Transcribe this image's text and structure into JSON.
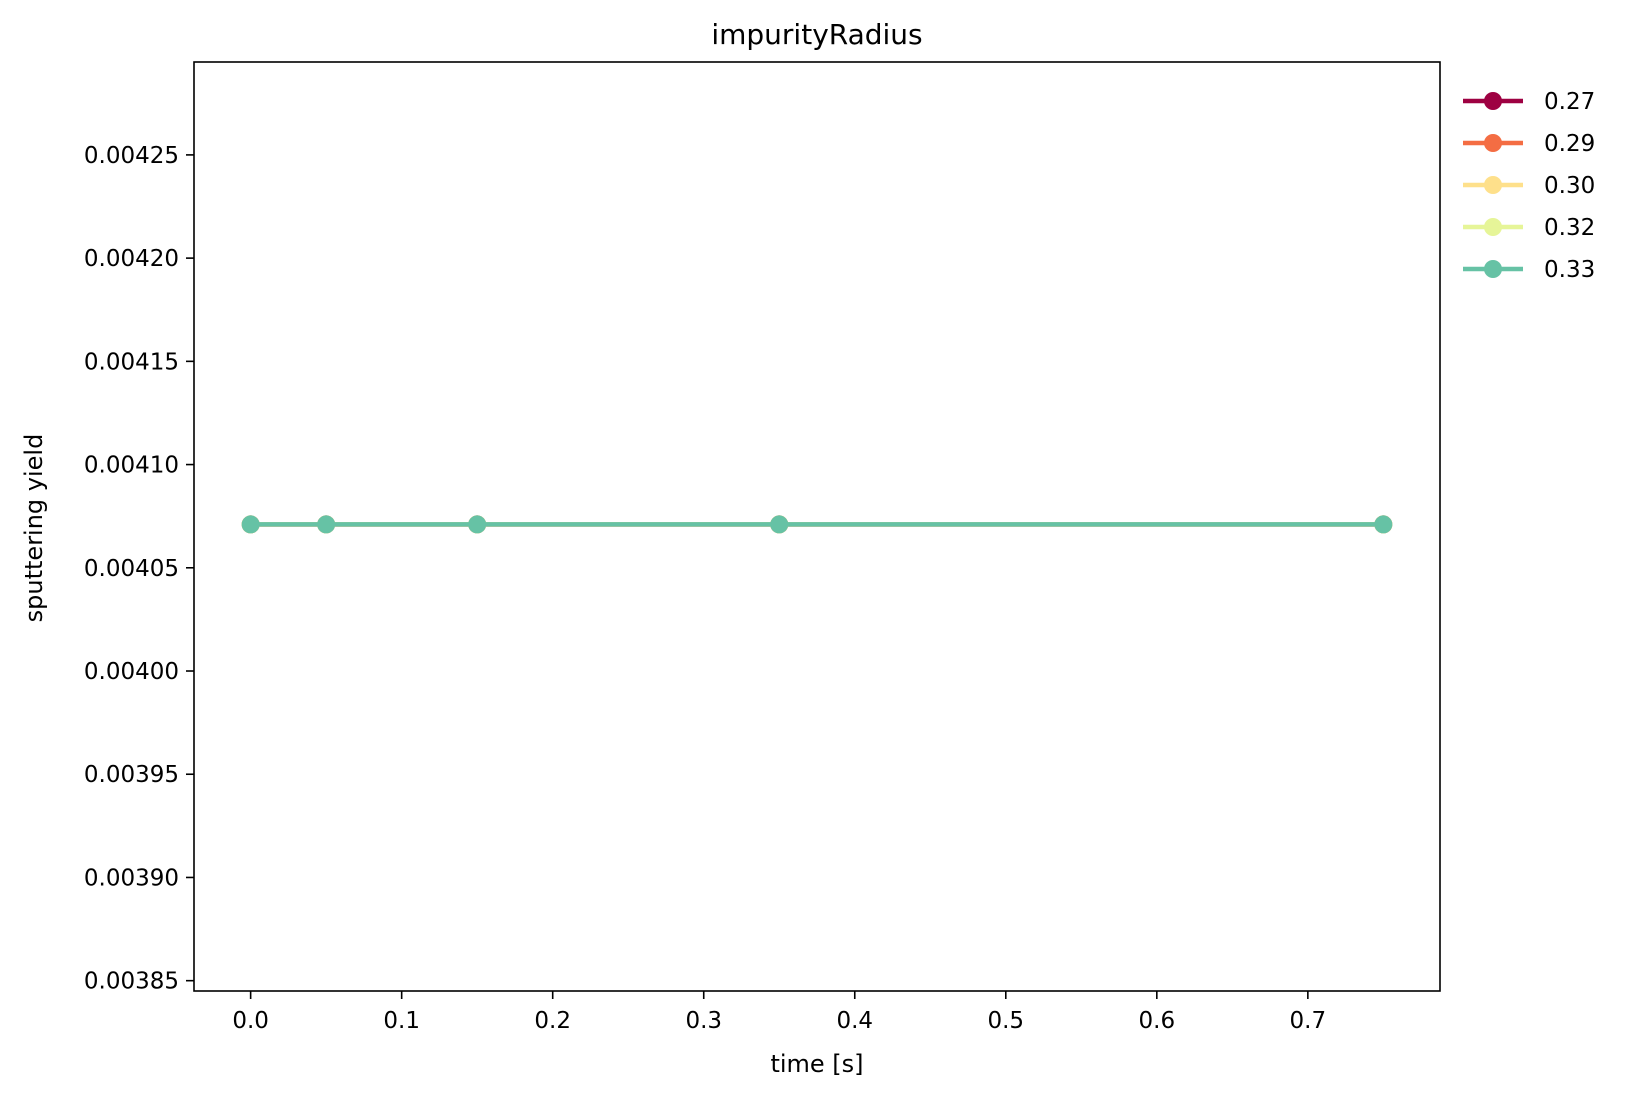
{
  "chart_data": {
    "type": "line",
    "title": "impurityRadius",
    "xlabel": "time [s]",
    "ylabel": "sputtering yield",
    "xlim": [
      -0.0375,
      0.7875
    ],
    "ylim": [
      0.003845,
      0.004295
    ],
    "x_ticks": [
      0.0,
      0.1,
      0.2,
      0.3,
      0.4,
      0.5,
      0.6,
      0.7
    ],
    "x_tick_labels": [
      "0.0",
      "0.1",
      "0.2",
      "0.3",
      "0.4",
      "0.5",
      "0.6",
      "0.7"
    ],
    "y_ticks": [
      0.00385,
      0.0039,
      0.00395,
      0.004,
      0.00405,
      0.0041,
      0.00415,
      0.0042,
      0.00425
    ],
    "y_tick_labels": [
      "0.00385",
      "0.00390",
      "0.00395",
      "0.00400",
      "0.00405",
      "0.00410",
      "0.00415",
      "0.00420",
      "0.00425"
    ],
    "grid": false,
    "legend_position": "outside-top-right",
    "x": [
      0.0,
      0.05,
      0.15,
      0.35,
      0.75
    ],
    "series": [
      {
        "name": "0.27",
        "color": "#9e0142",
        "values": [
          0.004071,
          0.004071,
          0.004071,
          0.004071,
          0.004071
        ]
      },
      {
        "name": "0.29",
        "color": "#f46d43",
        "values": [
          0.004071,
          0.004071,
          0.004071,
          0.004071,
          0.004071
        ]
      },
      {
        "name": "0.30",
        "color": "#fee08b",
        "values": [
          0.004071,
          0.004071,
          0.004071,
          0.004071,
          0.004071
        ]
      },
      {
        "name": "0.32",
        "color": "#e6f598",
        "values": [
          0.004071,
          0.004071,
          0.004071,
          0.004071,
          0.004071
        ]
      },
      {
        "name": "0.33",
        "color": "#66c2a5",
        "values": [
          0.004071,
          0.004071,
          0.004071,
          0.004071,
          0.004071
        ]
      }
    ]
  }
}
